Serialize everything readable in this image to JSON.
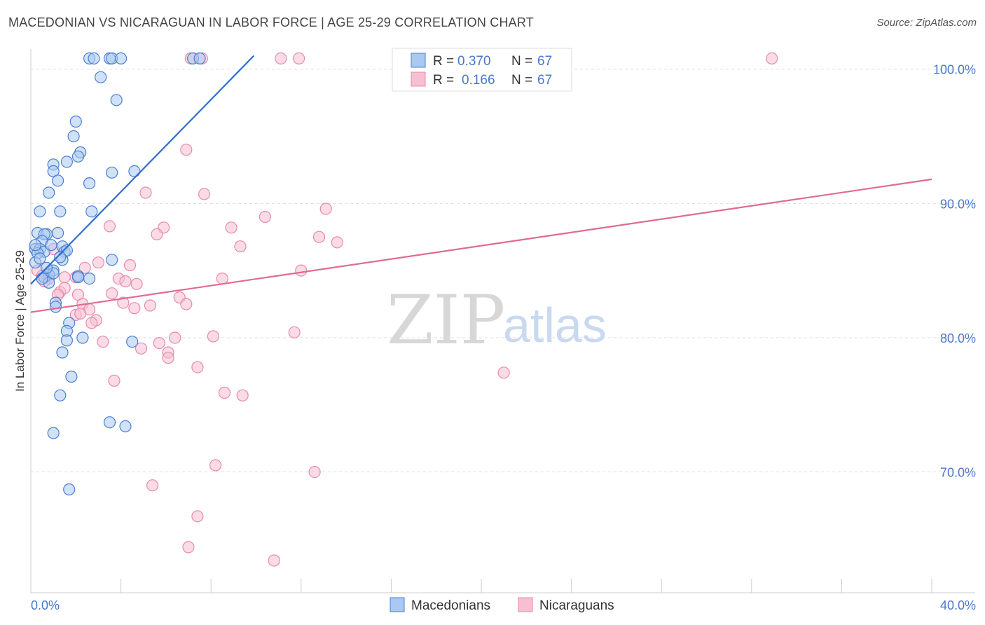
{
  "header": {
    "title": "MACEDONIAN VS NICARAGUAN IN LABOR FORCE | AGE 25-29 CORRELATION CHART",
    "source": "Source: ZipAtlas.com"
  },
  "watermark": {
    "part1": "ZIP",
    "part2": "atlas"
  },
  "legend": {
    "series1": {
      "r_label": "R =",
      "r_value": "0.370",
      "n_label": "N =",
      "n_value": "67"
    },
    "series2": {
      "r_label": "R =",
      "r_value": "0.166",
      "n_label": "N =",
      "n_value": "67"
    }
  },
  "bottom_legend": {
    "series1": "Macedonians",
    "series2": "Nicaraguans"
  },
  "colors": {
    "blue_fill": "#a9c8f2",
    "blue_stroke": "#4a7fd0",
    "blue_line": "#2f6fcf",
    "pink_fill": "#f7bfd2",
    "pink_stroke": "#e88aaa",
    "pink_line": "#e06a95",
    "grid": "#dddddd",
    "tick_text": "#4a78c8"
  },
  "chart_data": {
    "type": "scatter",
    "title": "MACEDONIAN VS NICARAGUAN IN LABOR FORCE | AGE 25-29 CORRELATION CHART",
    "xlabel": "",
    "ylabel": "In Labor Force | Age 25-29",
    "xlim": [
      0,
      40
    ],
    "ylim": [
      61,
      101.5
    ],
    "x_tick_labels": [
      {
        "value": 0,
        "label": "0.0%"
      },
      {
        "value": 40,
        "label": "40.0%"
      }
    ],
    "y_tick_labels": [
      {
        "value": 100,
        "label": "100.0%"
      },
      {
        "value": 90,
        "label": "90.0%"
      },
      {
        "value": 80,
        "label": "80.0%"
      },
      {
        "value": 70,
        "label": "70.0%"
      }
    ],
    "series": [
      {
        "name": "Macedonians",
        "R": 0.37,
        "N": 67,
        "trend": {
          "x0": 0.0,
          "y0": 84.0,
          "x1": 9.9,
          "y1": 101.0
        },
        "points": [
          [
            2.6,
            100.8
          ],
          [
            2.8,
            100.8
          ],
          [
            3.5,
            100.8
          ],
          [
            3.6,
            100.8
          ],
          [
            4.0,
            100.8
          ],
          [
            7.2,
            100.8
          ],
          [
            7.5,
            100.8
          ],
          [
            3.1,
            99.4
          ],
          [
            3.8,
            97.7
          ],
          [
            2.0,
            96.1
          ],
          [
            1.9,
            95.0
          ],
          [
            2.2,
            93.8
          ],
          [
            2.1,
            93.5
          ],
          [
            1.6,
            93.1
          ],
          [
            1.0,
            92.9
          ],
          [
            1.0,
            92.4
          ],
          [
            1.2,
            91.7
          ],
          [
            4.6,
            92.4
          ],
          [
            3.6,
            92.3
          ],
          [
            2.6,
            91.5
          ],
          [
            0.8,
            90.8
          ],
          [
            1.3,
            89.4
          ],
          [
            0.4,
            89.4
          ],
          [
            2.7,
            89.4
          ],
          [
            0.3,
            87.8
          ],
          [
            1.2,
            87.8
          ],
          [
            0.7,
            87.7
          ],
          [
            0.6,
            87.7
          ],
          [
            0.5,
            87.2
          ],
          [
            1.4,
            86.8
          ],
          [
            0.2,
            86.6
          ],
          [
            0.4,
            86.6
          ],
          [
            0.6,
            86.4
          ],
          [
            1.5,
            86.4
          ],
          [
            1.6,
            86.5
          ],
          [
            0.3,
            86.3
          ],
          [
            1.4,
            85.8
          ],
          [
            3.6,
            85.8
          ],
          [
            0.2,
            85.6
          ],
          [
            1.0,
            85.0
          ],
          [
            0.8,
            84.7
          ],
          [
            2.1,
            84.6
          ],
          [
            0.6,
            84.5
          ],
          [
            2.6,
            84.4
          ],
          [
            0.8,
            84.1
          ],
          [
            1.1,
            82.6
          ],
          [
            1.1,
            82.3
          ],
          [
            1.7,
            81.1
          ],
          [
            1.6,
            80.5
          ],
          [
            2.3,
            80.0
          ],
          [
            4.5,
            79.7
          ],
          [
            1.6,
            79.8
          ],
          [
            1.4,
            78.9
          ],
          [
            1.8,
            77.1
          ],
          [
            1.3,
            75.7
          ],
          [
            3.5,
            73.7
          ],
          [
            4.2,
            73.4
          ],
          [
            1.0,
            72.9
          ],
          [
            1.7,
            68.7
          ],
          [
            0.2,
            86.9
          ],
          [
            0.5,
            84.4
          ],
          [
            0.9,
            86.9
          ],
          [
            1.0,
            84.8
          ],
          [
            0.4,
            85.9
          ],
          [
            1.3,
            86.0
          ],
          [
            2.1,
            84.5
          ],
          [
            0.7,
            85.2
          ]
        ]
      },
      {
        "name": "Nicaraguans",
        "R": 0.166,
        "N": 67,
        "trend": {
          "x0": 0.0,
          "y0": 81.9,
          "x1": 40.0,
          "y1": 91.8
        },
        "points": [
          [
            7.1,
            100.8
          ],
          [
            7.6,
            100.8
          ],
          [
            11.1,
            100.8
          ],
          [
            11.9,
            100.8
          ],
          [
            32.9,
            100.8
          ],
          [
            6.9,
            94.0
          ],
          [
            5.1,
            90.8
          ],
          [
            7.7,
            90.7
          ],
          [
            13.1,
            89.6
          ],
          [
            10.4,
            89.0
          ],
          [
            3.5,
            88.3
          ],
          [
            5.9,
            88.2
          ],
          [
            8.9,
            88.2
          ],
          [
            5.6,
            87.7
          ],
          [
            12.8,
            87.5
          ],
          [
            13.6,
            87.1
          ],
          [
            9.3,
            86.8
          ],
          [
            1.0,
            86.6
          ],
          [
            3.0,
            85.6
          ],
          [
            4.4,
            85.4
          ],
          [
            2.4,
            85.2
          ],
          [
            0.3,
            85.0
          ],
          [
            12.0,
            85.0
          ],
          [
            0.5,
            84.6
          ],
          [
            2.0,
            84.5
          ],
          [
            0.8,
            84.4
          ],
          [
            1.5,
            84.5
          ],
          [
            3.9,
            84.4
          ],
          [
            4.2,
            84.2
          ],
          [
            8.5,
            84.4
          ],
          [
            0.6,
            84.2
          ],
          [
            4.7,
            84.0
          ],
          [
            1.3,
            83.4
          ],
          [
            1.5,
            83.7
          ],
          [
            3.6,
            83.3
          ],
          [
            2.1,
            83.2
          ],
          [
            6.6,
            83.0
          ],
          [
            6.9,
            82.5
          ],
          [
            4.1,
            82.6
          ],
          [
            5.3,
            82.4
          ],
          [
            4.6,
            82.2
          ],
          [
            2.3,
            82.5
          ],
          [
            2.6,
            82.1
          ],
          [
            2.0,
            81.7
          ],
          [
            2.9,
            81.3
          ],
          [
            2.7,
            81.1
          ],
          [
            11.7,
            80.4
          ],
          [
            8.1,
            80.1
          ],
          [
            6.4,
            80.0
          ],
          [
            3.2,
            79.7
          ],
          [
            5.7,
            79.6
          ],
          [
            4.9,
            79.2
          ],
          [
            6.1,
            78.9
          ],
          [
            6.1,
            78.5
          ],
          [
            21.0,
            77.4
          ],
          [
            7.4,
            77.8
          ],
          [
            3.7,
            76.8
          ],
          [
            8.6,
            75.9
          ],
          [
            9.4,
            75.7
          ],
          [
            8.2,
            70.5
          ],
          [
            12.6,
            70.0
          ],
          [
            5.4,
            69.0
          ],
          [
            7.4,
            66.7
          ],
          [
            7.0,
            64.4
          ],
          [
            10.8,
            63.4
          ],
          [
            2.2,
            81.8
          ],
          [
            1.2,
            83.2
          ]
        ]
      }
    ]
  }
}
